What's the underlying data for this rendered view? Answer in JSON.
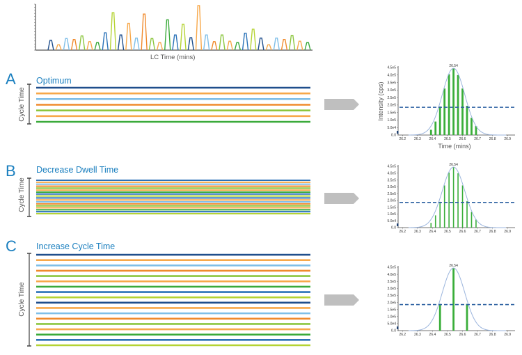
{
  "colors": {
    "dark_blue": "#1f4e8c",
    "orange": "#f08a2c",
    "light_orange": "#f7a84a",
    "light_blue": "#7fbfe8",
    "green": "#3aaa3a",
    "light_green": "#8cc63f",
    "yellow_green": "#b5d334",
    "blue": "#2a72b8",
    "accent": "#1a7fbf",
    "arrow": "#bfbfbf",
    "dashed": "#2a5fa0",
    "gauss": "#9bb5dd",
    "bar": "#3aae3a"
  },
  "top_chart": {
    "xlabel": "LC Time (mins)",
    "peaks": [
      {
        "c": "dark_blue",
        "h": 0.22
      },
      {
        "c": "light_orange",
        "h": 0.12
      },
      {
        "c": "light_blue",
        "h": 0.26
      },
      {
        "c": "orange",
        "h": 0.24
      },
      {
        "c": "light_green",
        "h": 0.32
      },
      {
        "c": "light_orange",
        "h": 0.19
      },
      {
        "c": "green",
        "h": 0.17
      },
      {
        "c": "blue",
        "h": 0.39
      },
      {
        "c": "yellow_green",
        "h": 0.84
      },
      {
        "c": "dark_blue",
        "h": 0.34
      },
      {
        "c": "light_orange",
        "h": 0.6
      },
      {
        "c": "light_blue",
        "h": 0.27
      },
      {
        "c": "orange",
        "h": 0.81
      },
      {
        "c": "light_green",
        "h": 0.26
      },
      {
        "c": "light_orange",
        "h": 0.17
      },
      {
        "c": "green",
        "h": 0.68
      },
      {
        "c": "blue",
        "h": 0.34
      },
      {
        "c": "yellow_green",
        "h": 0.58
      },
      {
        "c": "dark_blue",
        "h": 0.28
      },
      {
        "c": "light_orange",
        "h": 1.0
      },
      {
        "c": "light_blue",
        "h": 0.34
      },
      {
        "c": "orange",
        "h": 0.19
      },
      {
        "c": "light_green",
        "h": 0.34
      },
      {
        "c": "light_orange",
        "h": 0.2
      },
      {
        "c": "green",
        "h": 0.17
      },
      {
        "c": "blue",
        "h": 0.38
      },
      {
        "c": "yellow_green",
        "h": 0.47
      },
      {
        "c": "dark_blue",
        "h": 0.27
      },
      {
        "c": "light_orange",
        "h": 0.12
      },
      {
        "c": "light_blue",
        "h": 0.27
      },
      {
        "c": "orange",
        "h": 0.24
      },
      {
        "c": "light_green",
        "h": 0.33
      },
      {
        "c": "light_orange",
        "h": 0.2
      },
      {
        "c": "green",
        "h": 0.17
      }
    ]
  },
  "panels": [
    {
      "letter": "A",
      "title": "Optimum",
      "cycle_label": "Cycle Time",
      "lines": [
        "dark_blue",
        "light_orange",
        "light_blue",
        "orange",
        "light_green",
        "light_orange",
        "green"
      ]
    },
    {
      "letter": "B",
      "title": "Decrease Dwell Time",
      "cycle_label": "Cycle Time",
      "lines": [
        "blue",
        "light_orange",
        "light_blue",
        "orange",
        "light_green",
        "light_orange",
        "green",
        "blue",
        "yellow_green",
        "blue",
        "light_orange",
        "light_blue",
        "orange",
        "light_green",
        "light_orange",
        "green",
        "blue",
        "yellow_green"
      ]
    },
    {
      "letter": "C",
      "title": "Increase Cycle Time",
      "cycle_label": "Cycle Time",
      "lines": [
        "dark_blue",
        "light_orange",
        "light_blue",
        "orange",
        "light_green",
        "light_orange",
        "green",
        "blue",
        "yellow_green",
        "dark_blue",
        "light_orange",
        "light_blue",
        "orange",
        "light_green",
        "light_orange",
        "green",
        "blue",
        "yellow_green"
      ]
    }
  ],
  "chart_data": [
    {
      "type": "bar",
      "title": "",
      "peak_label": "26.54",
      "xlabel": "Time (mins)",
      "ylabel": "Intensity (cps)",
      "xlim": [
        26.18,
        26.95
      ],
      "ylim": [
        0,
        450000
      ],
      "xticks": [
        "26.2",
        "26.3",
        "26.4",
        "26.5",
        "26.6",
        "26.7",
        "26.8",
        "26.9"
      ],
      "yticks": [
        "0.0",
        "5.0e4",
        "1.0e5",
        "1.5e5",
        "2.0e5",
        "2.5e5",
        "3.0e5",
        "3.5e5",
        "4.0e5",
        "4.5e5"
      ],
      "threshold": 185000,
      "gaussian": {
        "center": 26.54,
        "sigma": 0.075,
        "amplitude": 445000
      },
      "bar_width": "thick",
      "x": [
        26.39,
        26.42,
        26.45,
        26.48,
        26.51,
        26.54,
        26.57,
        26.6,
        26.63,
        26.66,
        26.69
      ],
      "values": [
        35000,
        90000,
        190000,
        310000,
        405000,
        445000,
        400000,
        310000,
        195000,
        115000,
        60000
      ]
    },
    {
      "type": "bar",
      "title": "",
      "peak_label": "26.54",
      "xlabel": "",
      "ylabel": "",
      "xlim": [
        26.18,
        26.95
      ],
      "ylim": [
        0,
        450000
      ],
      "xticks": [
        "26.2",
        "26.3",
        "26.4",
        "26.5",
        "26.6",
        "26.7",
        "26.8",
        "26.9"
      ],
      "yticks": [
        "0.0",
        "5.0e4",
        "1.0e5",
        "1.5e5",
        "2.0e5",
        "2.5e5",
        "3.0e5",
        "3.5e5",
        "4.0e5",
        "4.5e5"
      ],
      "threshold": 185000,
      "gaussian": {
        "center": 26.54,
        "sigma": 0.075,
        "amplitude": 445000
      },
      "bar_width": "thin",
      "x": [
        26.39,
        26.42,
        26.45,
        26.48,
        26.51,
        26.54,
        26.57,
        26.6,
        26.63,
        26.66,
        26.69
      ],
      "values": [
        35000,
        90000,
        190000,
        310000,
        405000,
        445000,
        400000,
        310000,
        195000,
        115000,
        60000
      ]
    },
    {
      "type": "bar",
      "title": "",
      "peak_label": "26.54",
      "xlabel": "",
      "ylabel": "",
      "xlim": [
        26.18,
        26.95
      ],
      "ylim": [
        0,
        450000
      ],
      "xticks": [
        "26.2",
        "26.3",
        "26.4",
        "26.5",
        "26.6",
        "26.7",
        "26.8",
        "26.9"
      ],
      "yticks": [
        "0.0",
        "5.0e4",
        "1.0e5",
        "1.5e5",
        "2.0e5",
        "2.5e5",
        "3.0e5",
        "3.5e5",
        "4.0e5",
        "4.5e5"
      ],
      "threshold": 185000,
      "gaussian": {
        "center": 26.54,
        "sigma": 0.075,
        "amplitude": 445000
      },
      "bar_width": "thick",
      "x": [
        26.45,
        26.54,
        26.63
      ],
      "values": [
        190000,
        445000,
        190000
      ]
    }
  ]
}
